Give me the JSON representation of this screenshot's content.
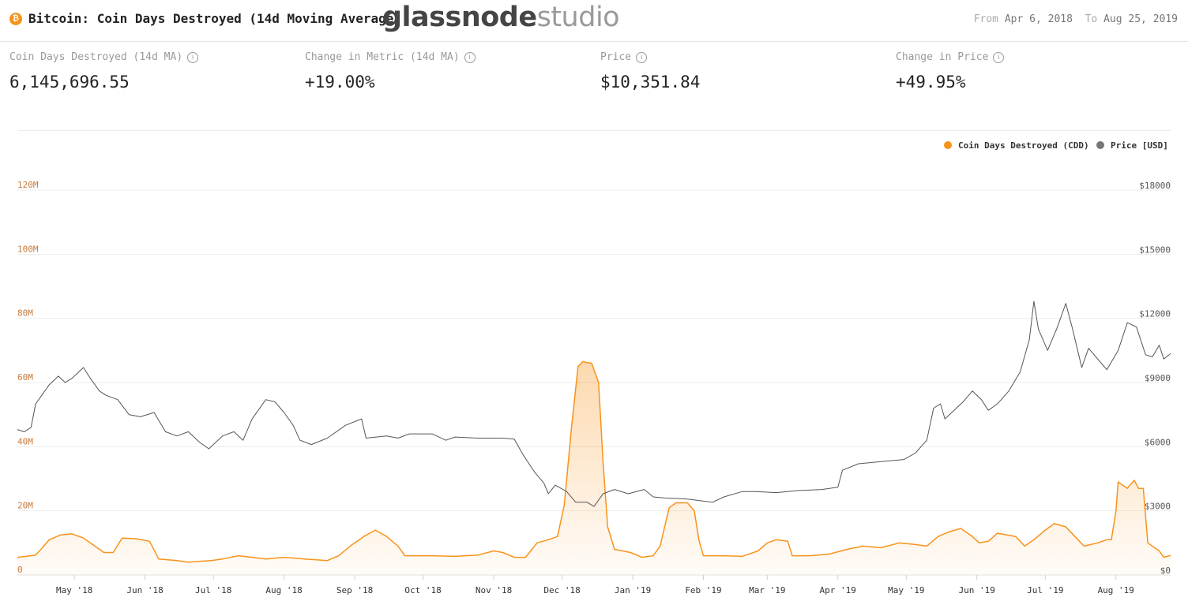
{
  "header": {
    "coin_symbol": "₿",
    "title": "Bitcoin: Coin Days Destroyed (14d Moving Average)",
    "brand_main": "glassnode",
    "brand_sub": "studio",
    "from_label": "From",
    "from_value": "Apr 6, 2018",
    "to_label": "To",
    "to_value": "Aug 25, 2019"
  },
  "metrics": [
    {
      "label": "Coin Days Destroyed (14d MA)",
      "value": "6,145,696.55"
    },
    {
      "label": "Change in Metric (14d MA)",
      "value": "+19.00%"
    },
    {
      "label": "Price",
      "value": "$10,351.84"
    },
    {
      "label": "Change in Price",
      "value": "+49.95%"
    }
  ],
  "info_icon": "info-icon",
  "colors": {
    "cdd": "#f7931a",
    "price": "#555555",
    "left_axis": "#c8793a",
    "right_axis": "#555555"
  },
  "chart_data": {
    "type": "line",
    "title": "Bitcoin: Coin Days Destroyed (14d Moving Average)",
    "legend": {
      "position": "top-right",
      "entries": [
        "Coin Days Destroyed (CDD)",
        "Price [USD]"
      ]
    },
    "x_range": [
      "2018-04-06",
      "2019-08-25"
    ],
    "x_ticks": [
      {
        "label": "May '18",
        "date": "2018-05-01"
      },
      {
        "label": "Jun '18",
        "date": "2018-06-01"
      },
      {
        "label": "Jul '18",
        "date": "2018-07-01"
      },
      {
        "label": "Aug '18",
        "date": "2018-08-01"
      },
      {
        "label": "Sep '18",
        "date": "2018-09-01"
      },
      {
        "label": "Oct '18",
        "date": "2018-10-01"
      },
      {
        "label": "Nov '18",
        "date": "2018-11-01"
      },
      {
        "label": "Dec '18",
        "date": "2018-12-01"
      },
      {
        "label": "Jan '19",
        "date": "2019-01-01"
      },
      {
        "label": "Feb '19",
        "date": "2019-02-01"
      },
      {
        "label": "Mar '19",
        "date": "2019-03-01"
      },
      {
        "label": "Apr '19",
        "date": "2019-04-01"
      },
      {
        "label": "May '19",
        "date": "2019-05-01"
      },
      {
        "label": "Jun '19",
        "date": "2019-06-01"
      },
      {
        "label": "Jul '19",
        "date": "2019-07-01"
      },
      {
        "label": "Aug '19",
        "date": "2019-08-01"
      }
    ],
    "y_left": {
      "ticks": [
        "0",
        "20M",
        "40M",
        "60M",
        "80M",
        "100M",
        "120M"
      ],
      "values": [
        0,
        20000000,
        40000000,
        60000000,
        80000000,
        100000000,
        120000000
      ],
      "range": [
        0,
        120000000
      ]
    },
    "y_right": {
      "ticks": [
        "$0",
        "$3000",
        "$6000",
        "$9000",
        "$12000",
        "$15000",
        "$18000"
      ],
      "values": [
        0,
        3000,
        6000,
        9000,
        12000,
        15000,
        18000
      ],
      "range": [
        0,
        18000
      ]
    },
    "grid": true,
    "series": [
      {
        "name": "Coin Days Destroyed (CDD)",
        "axis": "left",
        "type": "area",
        "points": [
          [
            "2018-04-06",
            5500000.0
          ],
          [
            "2018-04-10",
            5800000.0
          ],
          [
            "2018-04-14",
            6200000.0
          ],
          [
            "2018-04-17",
            8500000.0
          ],
          [
            "2018-04-20",
            11000000.0
          ],
          [
            "2018-04-25",
            12500000.0
          ],
          [
            "2018-04-30",
            12800000.0
          ],
          [
            "2018-05-05",
            11500000.0
          ],
          [
            "2018-05-10",
            9000000.0
          ],
          [
            "2018-05-14",
            7000000.0
          ],
          [
            "2018-05-18",
            7000000.0
          ],
          [
            "2018-05-22",
            11500000.0
          ],
          [
            "2018-05-28",
            11300000.0
          ],
          [
            "2018-06-03",
            10500000.0
          ],
          [
            "2018-06-07",
            5000000.0
          ],
          [
            "2018-06-15",
            4500000.0
          ],
          [
            "2018-06-20",
            4000000.0
          ],
          [
            "2018-06-30",
            4500000.0
          ],
          [
            "2018-07-05",
            5000000.0
          ],
          [
            "2018-07-12",
            6000000.0
          ],
          [
            "2018-07-18",
            5500000.0
          ],
          [
            "2018-07-24",
            5000000.0
          ],
          [
            "2018-08-01",
            5500000.0
          ],
          [
            "2018-08-10",
            5000000.0
          ],
          [
            "2018-08-20",
            4500000.0
          ],
          [
            "2018-08-25",
            6000000.0
          ],
          [
            "2018-08-30",
            9000000.0
          ],
          [
            "2018-09-05",
            12000000.0
          ],
          [
            "2018-09-10",
            14000000.0
          ],
          [
            "2018-09-15",
            12000000.0
          ],
          [
            "2018-09-20",
            9000000.0
          ],
          [
            "2018-09-23",
            6000000.0
          ],
          [
            "2018-10-05",
            6000000.0
          ],
          [
            "2018-10-15",
            5800000.0
          ],
          [
            "2018-10-25",
            6200000.0
          ],
          [
            "2018-11-01",
            7500000.0
          ],
          [
            "2018-11-05",
            7000000.0
          ],
          [
            "2018-11-10",
            5500000.0
          ],
          [
            "2018-11-15",
            5500000.0
          ],
          [
            "2018-11-20",
            10000000.0
          ],
          [
            "2018-11-25",
            11000000.0
          ],
          [
            "2018-11-29",
            12000000.0
          ],
          [
            "2018-12-02",
            22000000.0
          ],
          [
            "2018-12-05",
            45000000.0
          ],
          [
            "2018-12-08",
            65000000.0
          ],
          [
            "2018-12-10",
            66500000.0
          ],
          [
            "2018-12-14",
            66000000.0
          ],
          [
            "2018-12-17",
            60000000.0
          ],
          [
            "2018-12-19",
            35000000.0
          ],
          [
            "2018-12-21",
            15000000.0
          ],
          [
            "2018-12-24",
            8000000.0
          ],
          [
            "2018-12-31",
            7000000.0
          ],
          [
            "2019-01-05",
            5500000.0
          ],
          [
            "2019-01-10",
            6000000.0
          ],
          [
            "2019-01-13",
            9000000.0
          ],
          [
            "2019-01-15",
            15000000.0
          ],
          [
            "2019-01-17",
            21000000.0
          ],
          [
            "2019-01-20",
            22500000.0
          ],
          [
            "2019-01-25",
            22500000.0
          ],
          [
            "2019-01-28",
            20000000.0
          ],
          [
            "2019-01-30",
            11000000.0
          ],
          [
            "2019-02-01",
            6000000.0
          ],
          [
            "2019-02-10",
            6000000.0
          ],
          [
            "2019-02-18",
            5800000.0
          ],
          [
            "2019-02-25",
            7500000.0
          ],
          [
            "2019-03-01",
            10000000.0
          ],
          [
            "2019-03-05",
            11000000.0
          ],
          [
            "2019-03-10",
            10500000.0
          ],
          [
            "2019-03-12",
            6000000.0
          ],
          [
            "2019-03-20",
            6000000.0
          ],
          [
            "2019-03-28",
            6500000.0
          ],
          [
            "2019-04-05",
            8000000.0
          ],
          [
            "2019-04-12",
            9000000.0
          ],
          [
            "2019-04-20",
            8500000.0
          ],
          [
            "2019-04-28",
            10000000.0
          ],
          [
            "2019-05-05",
            9500000.0
          ],
          [
            "2019-05-10",
            9000000.0
          ],
          [
            "2019-05-15",
            12000000.0
          ],
          [
            "2019-05-20",
            13500000.0
          ],
          [
            "2019-05-25",
            14500000.0
          ],
          [
            "2019-05-30",
            12000000.0
          ],
          [
            "2019-06-02",
            10000000.0
          ],
          [
            "2019-06-06",
            10500000.0
          ],
          [
            "2019-06-10",
            13000000.0
          ],
          [
            "2019-06-18",
            12000000.0
          ],
          [
            "2019-06-22",
            9000000.0
          ],
          [
            "2019-06-26",
            11000000.0
          ],
          [
            "2019-07-01",
            14000000.0
          ],
          [
            "2019-07-05",
            16000000.0
          ],
          [
            "2019-07-10",
            15000000.0
          ],
          [
            "2019-07-14",
            12000000.0
          ],
          [
            "2019-07-18",
            9000000.0
          ],
          [
            "2019-07-24",
            10000000.0
          ],
          [
            "2019-07-28",
            11000000.0
          ],
          [
            "2019-07-30",
            11000000.0
          ],
          [
            "2019-08-01",
            20000000.0
          ],
          [
            "2019-08-02",
            29000000.0
          ],
          [
            "2019-08-06",
            27000000.0
          ],
          [
            "2019-08-09",
            29500000.0
          ],
          [
            "2019-08-11",
            27000000.0
          ],
          [
            "2019-08-13",
            27000000.0
          ],
          [
            "2019-08-15",
            10000000.0
          ],
          [
            "2019-08-17",
            9000000.0
          ],
          [
            "2019-08-20",
            7500000.0
          ],
          [
            "2019-08-22",
            5500000.0
          ],
          [
            "2019-08-25",
            6100000.0
          ]
        ]
      },
      {
        "name": "Price [USD]",
        "axis": "right",
        "type": "line",
        "points": [
          [
            "2018-04-06",
            6800
          ],
          [
            "2018-04-09",
            6700
          ],
          [
            "2018-04-12",
            6900
          ],
          [
            "2018-04-14",
            8000
          ],
          [
            "2018-04-20",
            8900
          ],
          [
            "2018-04-24",
            9300
          ],
          [
            "2018-04-27",
            9000
          ],
          [
            "2018-04-30",
            9200
          ],
          [
            "2018-05-05",
            9700
          ],
          [
            "2018-05-08",
            9200
          ],
          [
            "2018-05-12",
            8600
          ],
          [
            "2018-05-15",
            8400
          ],
          [
            "2018-05-20",
            8200
          ],
          [
            "2018-05-25",
            7500
          ],
          [
            "2018-05-30",
            7400
          ],
          [
            "2018-06-05",
            7600
          ],
          [
            "2018-06-10",
            6700
          ],
          [
            "2018-06-15",
            6500
          ],
          [
            "2018-06-20",
            6700
          ],
          [
            "2018-06-25",
            6200
          ],
          [
            "2018-06-29",
            5900
          ],
          [
            "2018-07-05",
            6500
          ],
          [
            "2018-07-10",
            6700
          ],
          [
            "2018-07-14",
            6300
          ],
          [
            "2018-07-18",
            7300
          ],
          [
            "2018-07-24",
            8200
          ],
          [
            "2018-07-28",
            8100
          ],
          [
            "2018-08-01",
            7600
          ],
          [
            "2018-08-05",
            7000
          ],
          [
            "2018-08-08",
            6300
          ],
          [
            "2018-08-13",
            6100
          ],
          [
            "2018-08-20",
            6400
          ],
          [
            "2018-08-28",
            7000
          ],
          [
            "2018-09-04",
            7300
          ],
          [
            "2018-09-06",
            6400
          ],
          [
            "2018-09-15",
            6500
          ],
          [
            "2018-09-20",
            6400
          ],
          [
            "2018-09-25",
            6600
          ],
          [
            "2018-10-05",
            6600
          ],
          [
            "2018-10-11",
            6300
          ],
          [
            "2018-10-15",
            6450
          ],
          [
            "2018-10-25",
            6400
          ],
          [
            "2018-11-05",
            6400
          ],
          [
            "2018-11-10",
            6350
          ],
          [
            "2018-11-14",
            5600
          ],
          [
            "2018-11-19",
            4800
          ],
          [
            "2018-11-23",
            4300
          ],
          [
            "2018-11-25",
            3800
          ],
          [
            "2018-11-28",
            4200
          ],
          [
            "2018-12-03",
            3900
          ],
          [
            "2018-12-07",
            3400
          ],
          [
            "2018-12-12",
            3400
          ],
          [
            "2018-12-15",
            3200
          ],
          [
            "2018-12-19",
            3800
          ],
          [
            "2018-12-24",
            4000
          ],
          [
            "2018-12-30",
            3800
          ],
          [
            "2019-01-06",
            4000
          ],
          [
            "2019-01-10",
            3650
          ],
          [
            "2019-01-15",
            3600
          ],
          [
            "2019-01-25",
            3550
          ],
          [
            "2019-02-05",
            3400
          ],
          [
            "2019-02-10",
            3650
          ],
          [
            "2019-02-18",
            3900
          ],
          [
            "2019-02-24",
            3900
          ],
          [
            "2019-03-05",
            3850
          ],
          [
            "2019-03-15",
            3950
          ],
          [
            "2019-03-25",
            4000
          ],
          [
            "2019-04-01",
            4100
          ],
          [
            "2019-04-03",
            4900
          ],
          [
            "2019-04-10",
            5200
          ],
          [
            "2019-04-20",
            5300
          ],
          [
            "2019-04-30",
            5400
          ],
          [
            "2019-05-05",
            5700
          ],
          [
            "2019-05-10",
            6300
          ],
          [
            "2019-05-13",
            7800
          ],
          [
            "2019-05-16",
            8000
          ],
          [
            "2019-05-18",
            7300
          ],
          [
            "2019-05-26",
            8100
          ],
          [
            "2019-05-30",
            8600
          ],
          [
            "2019-06-03",
            8200
          ],
          [
            "2019-06-06",
            7700
          ],
          [
            "2019-06-10",
            8000
          ],
          [
            "2019-06-15",
            8600
          ],
          [
            "2019-06-20",
            9500
          ],
          [
            "2019-06-24",
            11000
          ],
          [
            "2019-06-26",
            12800
          ],
          [
            "2019-06-28",
            11500
          ],
          [
            "2019-07-02",
            10500
          ],
          [
            "2019-07-06",
            11500
          ],
          [
            "2019-07-10",
            12700
          ],
          [
            "2019-07-13",
            11500
          ],
          [
            "2019-07-17",
            9700
          ],
          [
            "2019-07-20",
            10600
          ],
          [
            "2019-07-28",
            9600
          ],
          [
            "2019-08-02",
            10500
          ],
          [
            "2019-08-06",
            11800
          ],
          [
            "2019-08-10",
            11600
          ],
          [
            "2019-08-14",
            10300
          ],
          [
            "2019-08-17",
            10200
          ],
          [
            "2019-08-20",
            10750
          ],
          [
            "2019-08-22",
            10100
          ],
          [
            "2019-08-25",
            10350
          ]
        ]
      }
    ]
  }
}
